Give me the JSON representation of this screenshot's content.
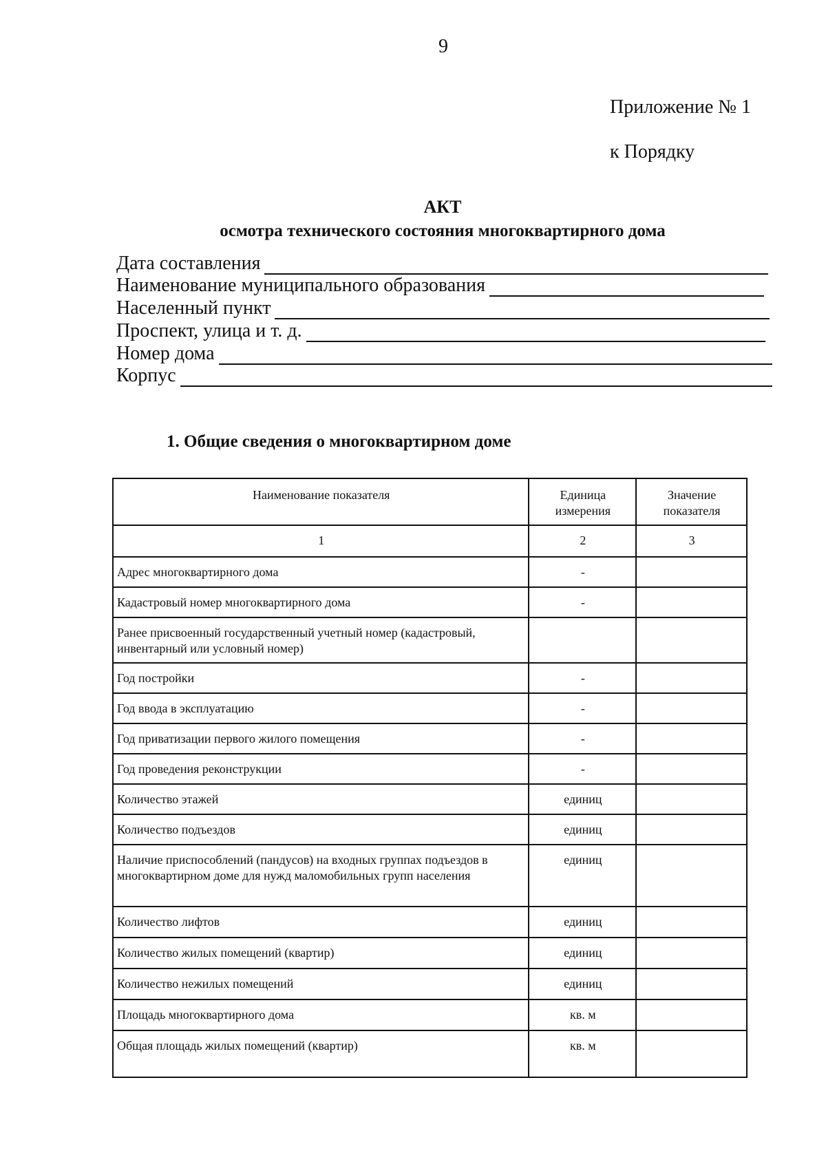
{
  "page_number": "9",
  "appendix": {
    "line1": "Приложение № 1",
    "line2": "к Порядку"
  },
  "title": "АКТ",
  "subtitle": "осмотра технического состояния многоквартирного дома",
  "fields": [
    {
      "label": "Дата составления",
      "value": ""
    },
    {
      "label": "Наименование муниципального образования",
      "value": ""
    },
    {
      "label": "Населенный пункт",
      "value": ""
    },
    {
      "label": "Проспект, улица и т. д.",
      "value": ""
    },
    {
      "label": "Номер дома",
      "value": ""
    },
    {
      "label": "Корпус",
      "value": ""
    }
  ],
  "section_heading": "1.  Общие сведения о многоквартирном доме",
  "table": {
    "headers": [
      "Наименование показателя",
      "Единица измерения",
      "Значение показателя"
    ],
    "column_numbers": [
      "1",
      "2",
      "3"
    ],
    "rows": [
      {
        "name": "Адрес многоквартирного дома",
        "unit": "-",
        "value": ""
      },
      {
        "name": "Кадастровый номер многоквартирного дома",
        "unit": "-",
        "value": ""
      },
      {
        "name": "Ранее присвоенный государственный учетный номер (кадастровый, инвентарный или условный номер)",
        "unit": "",
        "value": ""
      },
      {
        "name": "Год постройки",
        "unit": "-",
        "value": ""
      },
      {
        "name": "Год ввода в эксплуатацию",
        "unit": "-",
        "value": ""
      },
      {
        "name": "Год приватизации первого жилого помещения",
        "unit": "-",
        "value": ""
      },
      {
        "name": "Год проведения реконструкции",
        "unit": "-",
        "value": ""
      },
      {
        "name": "Количество этажей",
        "unit": "единиц",
        "value": ""
      },
      {
        "name": "Количество подъездов",
        "unit": "единиц",
        "value": ""
      },
      {
        "name": "Наличие приспособлений (пандусов) на входных группах подъездов в многоквартирном доме для нужд маломобильных групп населения",
        "unit": "единиц",
        "value": ""
      },
      {
        "name": "Количество лифтов",
        "unit": "единиц",
        "value": ""
      },
      {
        "name": "Количество жилых помещений (квартир)",
        "unit": "единиц",
        "value": ""
      },
      {
        "name": "Количество нежилых помещений",
        "unit": "единиц",
        "value": ""
      },
      {
        "name": "Площадь многоквартирного дома",
        "unit": "кв. м",
        "value": ""
      },
      {
        "name": "Общая площадь жилых помещений (квартир)",
        "unit": "кв. м",
        "value": ""
      }
    ]
  }
}
